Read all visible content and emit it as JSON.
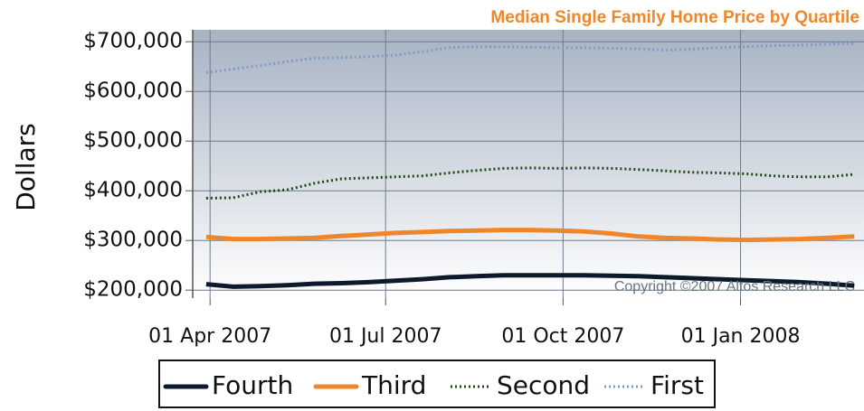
{
  "chart_data": {
    "type": "line",
    "title": "Median Single Family Home Price by Quartile",
    "y_label": "Dollars",
    "annotation": "Copyright ©2007 Altos Research LLC",
    "x": [
      "2007-03-30",
      "2007-04-13",
      "2007-04-27",
      "2007-05-11",
      "2007-05-25",
      "2007-06-08",
      "2007-06-22",
      "2007-07-06",
      "2007-07-20",
      "2007-08-03",
      "2007-08-17",
      "2007-08-31",
      "2007-09-14",
      "2007-09-28",
      "2007-10-12",
      "2007-10-26",
      "2007-11-09",
      "2007-11-23",
      "2007-12-07",
      "2007-12-21",
      "2008-01-04",
      "2008-01-18",
      "2008-02-01",
      "2008-02-15",
      "2008-02-29"
    ],
    "series": [
      {
        "name": "Fourth",
        "color": "#0d1a2b",
        "line_style": "solid",
        "values": [
          212000,
          207000,
          208000,
          210000,
          213000,
          214000,
          216000,
          219000,
          222000,
          226000,
          228000,
          230000,
          230000,
          230000,
          230000,
          229000,
          228000,
          226000,
          224000,
          222000,
          220000,
          218000,
          216000,
          213000,
          209000
        ]
      },
      {
        "name": "Third",
        "color": "#f0862a",
        "line_style": "solid",
        "values": [
          307000,
          303000,
          303000,
          304000,
          305000,
          309000,
          312000,
          315000,
          317000,
          319000,
          320000,
          321000,
          321000,
          320000,
          318000,
          314000,
          308000,
          305000,
          304000,
          302000,
          301000,
          302000,
          303000,
          305000,
          308000
        ]
      },
      {
        "name": "Second",
        "color": "#1e4a18",
        "line_style": "dotted",
        "values": [
          385000,
          386000,
          398000,
          402000,
          415000,
          424000,
          426000,
          428000,
          430000,
          436000,
          441000,
          445000,
          446000,
          445000,
          446000,
          445000,
          443000,
          440000,
          437000,
          436000,
          434000,
          430000,
          428000,
          428000,
          433000
        ]
      },
      {
        "name": "First",
        "color": "#7f9cc4",
        "line_style": "dotted",
        "values": [
          638000,
          645000,
          652000,
          660000,
          667000,
          668000,
          670000,
          673000,
          680000,
          688000,
          690000,
          690000,
          689000,
          688000,
          688000,
          687000,
          686000,
          683000,
          685000,
          688000,
          690000,
          692000,
          693000,
          695000,
          697000
        ]
      }
    ],
    "xlim": [
      "2007-03-23",
      "2008-03-05"
    ],
    "xticks": [
      {
        "value": "2007-04-01",
        "label": "01 Apr 2007"
      },
      {
        "value": "2007-07-01",
        "label": "01 Jul 2007"
      },
      {
        "value": "2007-10-01",
        "label": "01 Oct 2007"
      },
      {
        "value": "2008-01-01",
        "label": "01 Jan 2008"
      }
    ],
    "ylim": [
      184000,
      724000
    ],
    "yticks": [
      {
        "value": 200000,
        "label": "$200,000"
      },
      {
        "value": 300000,
        "label": "$300,000"
      },
      {
        "value": 400000,
        "label": "$400,000"
      },
      {
        "value": 500000,
        "label": "$500,000"
      },
      {
        "value": 600000,
        "label": "$600,000"
      },
      {
        "value": 700000,
        "label": "$700,000"
      }
    ],
    "grid": true,
    "legend": "bottom"
  }
}
